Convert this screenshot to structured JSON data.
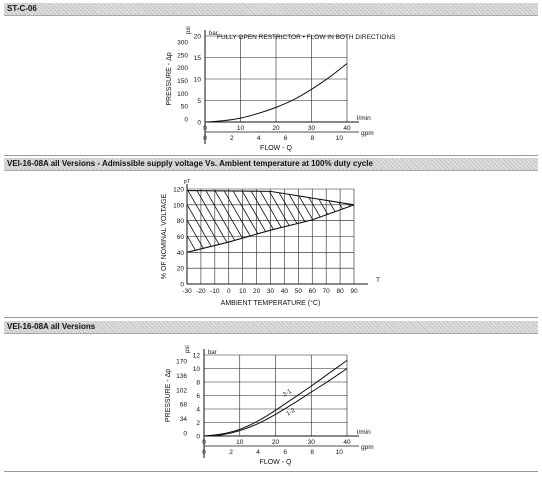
{
  "sections": [
    {
      "title": "ST-C-06"
    },
    {
      "title": "VEI-16-08A all Versions - Admissible supply voltage Vs. Ambient temperature at 100% duty cycle"
    },
    {
      "title": "VEI-16-08A all Versions"
    }
  ],
  "chart_data": [
    {
      "type": "line",
      "title": "FULLY OPEN RESTRICTOR • FLOW IN BOTH DIRECTIONS",
      "xlabel": "FLOW - Q",
      "ylabel": "PRESSURE - Δp",
      "x_unit": "l/min",
      "x2_unit": "gpm",
      "y_unit_right": "bar",
      "y_unit_left": "psi",
      "xlim": [
        0,
        40
      ],
      "ylim": [
        0,
        20
      ],
      "x_ticks": [
        0,
        10,
        20,
        30,
        40
      ],
      "x2_ticks": [
        "0",
        "2",
        "4",
        "6",
        "8",
        "10"
      ],
      "y_ticks": [
        0,
        5,
        10,
        15,
        20
      ],
      "y_psi_ticks": [
        "0",
        "50",
        "100",
        "150",
        "200",
        "250",
        "300"
      ],
      "grid": true,
      "series": [
        {
          "x": [
            0,
            5,
            10,
            15,
            20,
            25,
            30,
            35,
            40
          ],
          "y": [
            0,
            0.3,
            0.9,
            2.0,
            3.4,
            5.2,
            7.6,
            10.4,
            13.6
          ]
        }
      ]
    },
    {
      "type": "area",
      "xlabel": "AMBIENT TEMPERATURE (°C)",
      "ylabel": "% OF NOMINAL VOLTAGE",
      "x_extra_label": "T",
      "y_unit": "pT",
      "xlim": [
        -30,
        90
      ],
      "ylim": [
        0,
        120
      ],
      "x_ticks": [
        "-30",
        "-20",
        "-10",
        "0",
        "10",
        "20",
        "30",
        "40",
        "50",
        "60",
        "70",
        "80",
        "90"
      ],
      "y_ticks": [
        "0",
        "20",
        "40",
        "60",
        "80",
        "100",
        "120"
      ],
      "grid": true,
      "series": [
        {
          "x": [
            -30,
            0,
            30,
            60,
            90
          ],
          "y": [
            40,
            53,
            68,
            81,
            100
          ]
        },
        {
          "x": [
            -30,
            30,
            90
          ],
          "y": [
            118,
            117,
            100
          ]
        }
      ]
    },
    {
      "type": "line",
      "xlabel": "FLOW - Q",
      "ylabel": "PRESSURE - Δp",
      "x_unit": "l/min",
      "x2_unit": "gpm",
      "y_unit_right": "bar",
      "y_unit_left": "psi",
      "xlim": [
        0,
        40
      ],
      "ylim": [
        0,
        12
      ],
      "x_ticks": [
        0,
        10,
        20,
        30,
        40
      ],
      "x2_ticks": [
        "0",
        "2",
        "4",
        "6",
        "8",
        "10"
      ],
      "y_ticks": [
        0,
        2,
        4,
        6,
        8,
        10,
        12
      ],
      "y_psi_ticks": [
        "0",
        "34",
        "68",
        "102",
        "136",
        "170"
      ],
      "grid": true,
      "series": [
        {
          "name": "2-1",
          "x": [
            0,
            5,
            10,
            15,
            20,
            25,
            30,
            35,
            40
          ],
          "y": [
            0,
            0.3,
            1.0,
            2.2,
            3.8,
            5.6,
            7.4,
            9.3,
            11.2
          ]
        },
        {
          "name": "1-2",
          "x": [
            0,
            5,
            10,
            15,
            20,
            25,
            30,
            35,
            40
          ],
          "y": [
            0,
            0.2,
            0.8,
            1.8,
            3.2,
            4.8,
            6.5,
            8.2,
            10.0
          ]
        }
      ]
    }
  ]
}
